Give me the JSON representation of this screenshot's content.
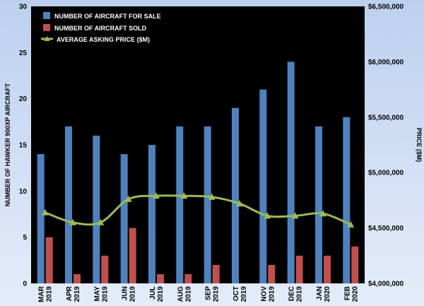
{
  "chart_data": {
    "type": "bar",
    "categories": [
      {
        "month": "MAR",
        "year": "2019"
      },
      {
        "month": "APR",
        "year": "2019"
      },
      {
        "month": "MAY",
        "year": "2019"
      },
      {
        "month": "JUN",
        "year": "2019"
      },
      {
        "month": "JUL",
        "year": "2019"
      },
      {
        "month": "AUG",
        "year": "2019"
      },
      {
        "month": "SEP",
        "year": "2019"
      },
      {
        "month": "OCT",
        "year": "2019"
      },
      {
        "month": "NOV",
        "year": "2019"
      },
      {
        "month": "DEC",
        "year": "2019"
      },
      {
        "month": "JAN",
        "year": "2020"
      },
      {
        "month": "FEB",
        "year": "2020"
      }
    ],
    "series": [
      {
        "name": "NUMBER OF AIRCRAFT FOR SALE",
        "type": "bar",
        "axis": "left",
        "color": "#4f81bd",
        "values": [
          14,
          17,
          16,
          14,
          15,
          17,
          17,
          19,
          21,
          24,
          17,
          18
        ]
      },
      {
        "name": "NUMBER OF AIRCRAFT SOLD",
        "type": "bar",
        "axis": "left",
        "color": "#c0504d",
        "values": [
          5,
          1,
          3,
          6,
          1,
          1,
          2,
          0,
          2,
          3,
          3,
          4
        ]
      },
      {
        "name": "AVERAGE ASKING PRICE ($M)",
        "type": "line",
        "axis": "right",
        "color": "#9bbb59",
        "values": [
          4640000,
          4550000,
          4550000,
          4760000,
          4790000,
          4790000,
          4780000,
          4720000,
          4610000,
          4610000,
          4630000,
          4530000
        ]
      }
    ],
    "ylabel": "NUMBER OF HAWKER 900XP AIRCRAFT",
    "y2label": "PRICE ($M)",
    "ylim": [
      0,
      30
    ],
    "yticks": [
      "0",
      "5",
      "10",
      "15",
      "20",
      "25",
      "30"
    ],
    "y2lim": [
      4000000,
      6500000
    ],
    "y2ticks": [
      "$4,000,000",
      "$4,500,000",
      "$5,000,000",
      "$5,500,000",
      "$6,000,000",
      "$6,500,000"
    ],
    "legend_position": "top-left",
    "grid": false,
    "plot_background": "#000000"
  }
}
